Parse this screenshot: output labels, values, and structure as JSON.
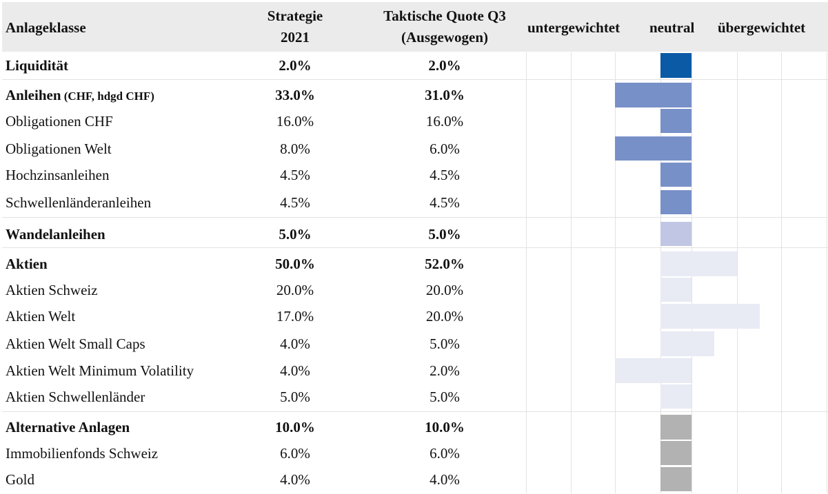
{
  "header": {
    "col_class": "Anlageklasse",
    "col_strategy": [
      "Strategie",
      "2021"
    ],
    "col_tactical": [
      "Taktische Quote Q3",
      "(Ausgewogen)"
    ],
    "scale_under": "untergewichtet",
    "scale_neutral": "neutral",
    "scale_over": "übergewichtet"
  },
  "chart_data": {
    "type": "table",
    "columns": [
      "Anlageklasse",
      "Strategie 2021",
      "Taktische Quote Q3 (Ausgewogen)",
      "untergewichtet / neutral / übergewichtet"
    ],
    "colors": {
      "liquidity": "#0b5aa6",
      "bonds": "#7890c8",
      "convertibles": "#c0c6e4",
      "equities": "#e8eaf4",
      "alternatives": "#b2b2b2"
    },
    "rows": [
      {
        "label": "Liquidität",
        "label_note": "",
        "strategy": "2.0%",
        "tactical": "2.0%",
        "bold": true,
        "group": "liquidity",
        "deviation": 0,
        "group_start": true
      },
      {
        "label": "Anleihen",
        "label_note": "(CHF, hdgd CHF)",
        "strategy": "33.0%",
        "tactical": "31.0%",
        "bold": true,
        "group": "bonds",
        "deviation": -2,
        "group_start": true
      },
      {
        "label": "Obligationen CHF",
        "label_note": "",
        "strategy": "16.0%",
        "tactical": "16.0%",
        "bold": false,
        "group": "bonds",
        "deviation": 0
      },
      {
        "label": "Obligationen Welt",
        "label_note": "",
        "strategy": "8.0%",
        "tactical": "6.0%",
        "bold": false,
        "group": "bonds",
        "deviation": -2
      },
      {
        "label": "Hochzinsanleihen",
        "label_note": "",
        "strategy": "4.5%",
        "tactical": "4.5%",
        "bold": false,
        "group": "bonds",
        "deviation": 0
      },
      {
        "label": "Schwellenländeranleihen",
        "label_note": "",
        "strategy": "4.5%",
        "tactical": "4.5%",
        "bold": false,
        "group": "bonds",
        "deviation": 0
      },
      {
        "label": "Wandelanleihen",
        "label_note": "",
        "strategy": "5.0%",
        "tactical": "5.0%",
        "bold": true,
        "group": "convertibles",
        "deviation": 0,
        "group_start": true
      },
      {
        "label": "Aktien",
        "label_note": "",
        "strategy": "50.0%",
        "tactical": "52.0%",
        "bold": true,
        "group": "equities",
        "deviation": 2,
        "group_start": true
      },
      {
        "label": "Aktien Schweiz",
        "label_note": "",
        "strategy": "20.0%",
        "tactical": "20.0%",
        "bold": false,
        "group": "equities",
        "deviation": 0
      },
      {
        "label": "Aktien Welt",
        "label_note": "",
        "strategy": "17.0%",
        "tactical": "20.0%",
        "bold": false,
        "group": "equities",
        "deviation": 3
      },
      {
        "label": "Aktien Welt Small Caps",
        "label_note": "",
        "strategy": "4.0%",
        "tactical": "5.0%",
        "bold": false,
        "group": "equities",
        "deviation": 1
      },
      {
        "label": "Aktien Welt Minimum Volatility",
        "label_note": "",
        "strategy": "4.0%",
        "tactical": "2.0%",
        "bold": false,
        "group": "equities",
        "deviation": -2
      },
      {
        "label": "Aktien Schwellenländer",
        "label_note": "",
        "strategy": "5.0%",
        "tactical": "5.0%",
        "bold": false,
        "group": "equities",
        "deviation": 0
      },
      {
        "label": "Alternative Anlagen",
        "label_note": "",
        "strategy": "10.0%",
        "tactical": "10.0%",
        "bold": true,
        "group": "alternatives",
        "deviation": 0,
        "group_start": true
      },
      {
        "label": "Immobilienfonds Schweiz",
        "label_note": "",
        "strategy": "6.0%",
        "tactical": "6.0%",
        "bold": false,
        "group": "alternatives",
        "deviation": 0
      },
      {
        "label": "Gold",
        "label_note": "",
        "strategy": "4.0%",
        "tactical": "4.0%",
        "bold": false,
        "group": "alternatives",
        "deviation": 0
      }
    ]
  }
}
